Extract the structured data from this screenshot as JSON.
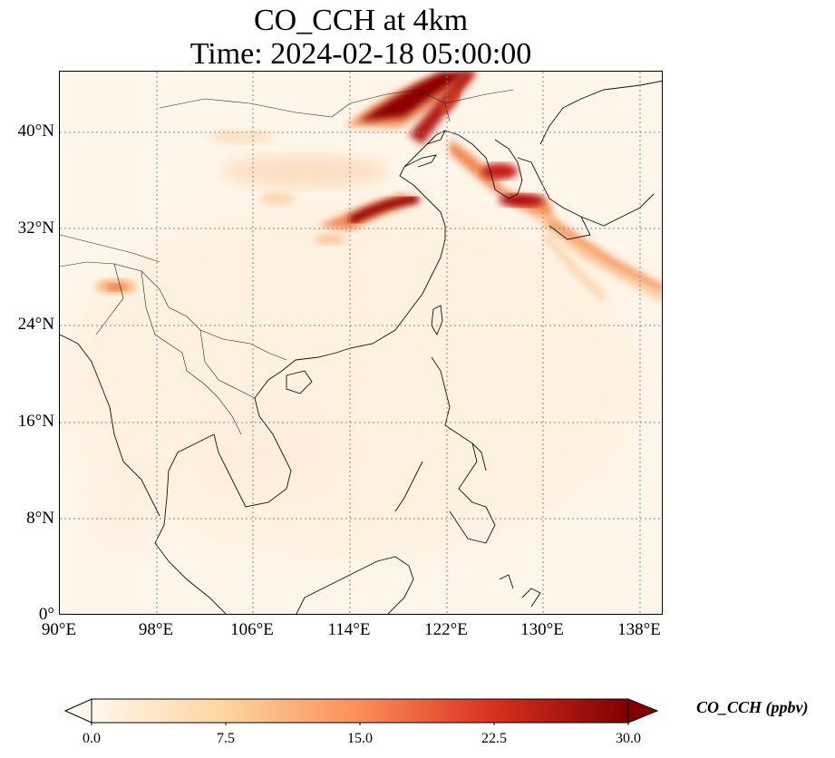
{
  "title": {
    "line1": "CO_CCH at 4km",
    "line2": "Time: 2024-02-18 05:00:00"
  },
  "map": {
    "lon_range": [
      90,
      140
    ],
    "lat_range": [
      0,
      45
    ],
    "lat_ticks": [
      "0°",
      "8°N",
      "16°N",
      "24°N",
      "32°N",
      "40°N"
    ],
    "lon_ticks": [
      "90°E",
      "98°E",
      "106°E",
      "114°E",
      "122°E",
      "130°E",
      "138°E"
    ],
    "gridlines": "dotted",
    "colormap": "OrRd",
    "background_color": "#fff5e9",
    "plumes": [
      {
        "name": "north-china-plume",
        "level": "high"
      },
      {
        "name": "yangtze-plume",
        "level": "high"
      },
      {
        "name": "korea-japan-plume",
        "level": "high"
      },
      {
        "name": "pacific-outflow",
        "level": "moderate"
      },
      {
        "name": "tibet-spot",
        "level": "moderate"
      }
    ]
  },
  "colorbar": {
    "label": "CO_CCH (ppbv)",
    "ticks": [
      "0.0",
      "7.5",
      "15.0",
      "22.5",
      "30.0"
    ],
    "min": 0.0,
    "max": 30.0,
    "extend": "both",
    "colors": [
      "#fff7ec",
      "#fdd49e",
      "#fc8d59",
      "#d7301f",
      "#7f0000"
    ]
  }
}
